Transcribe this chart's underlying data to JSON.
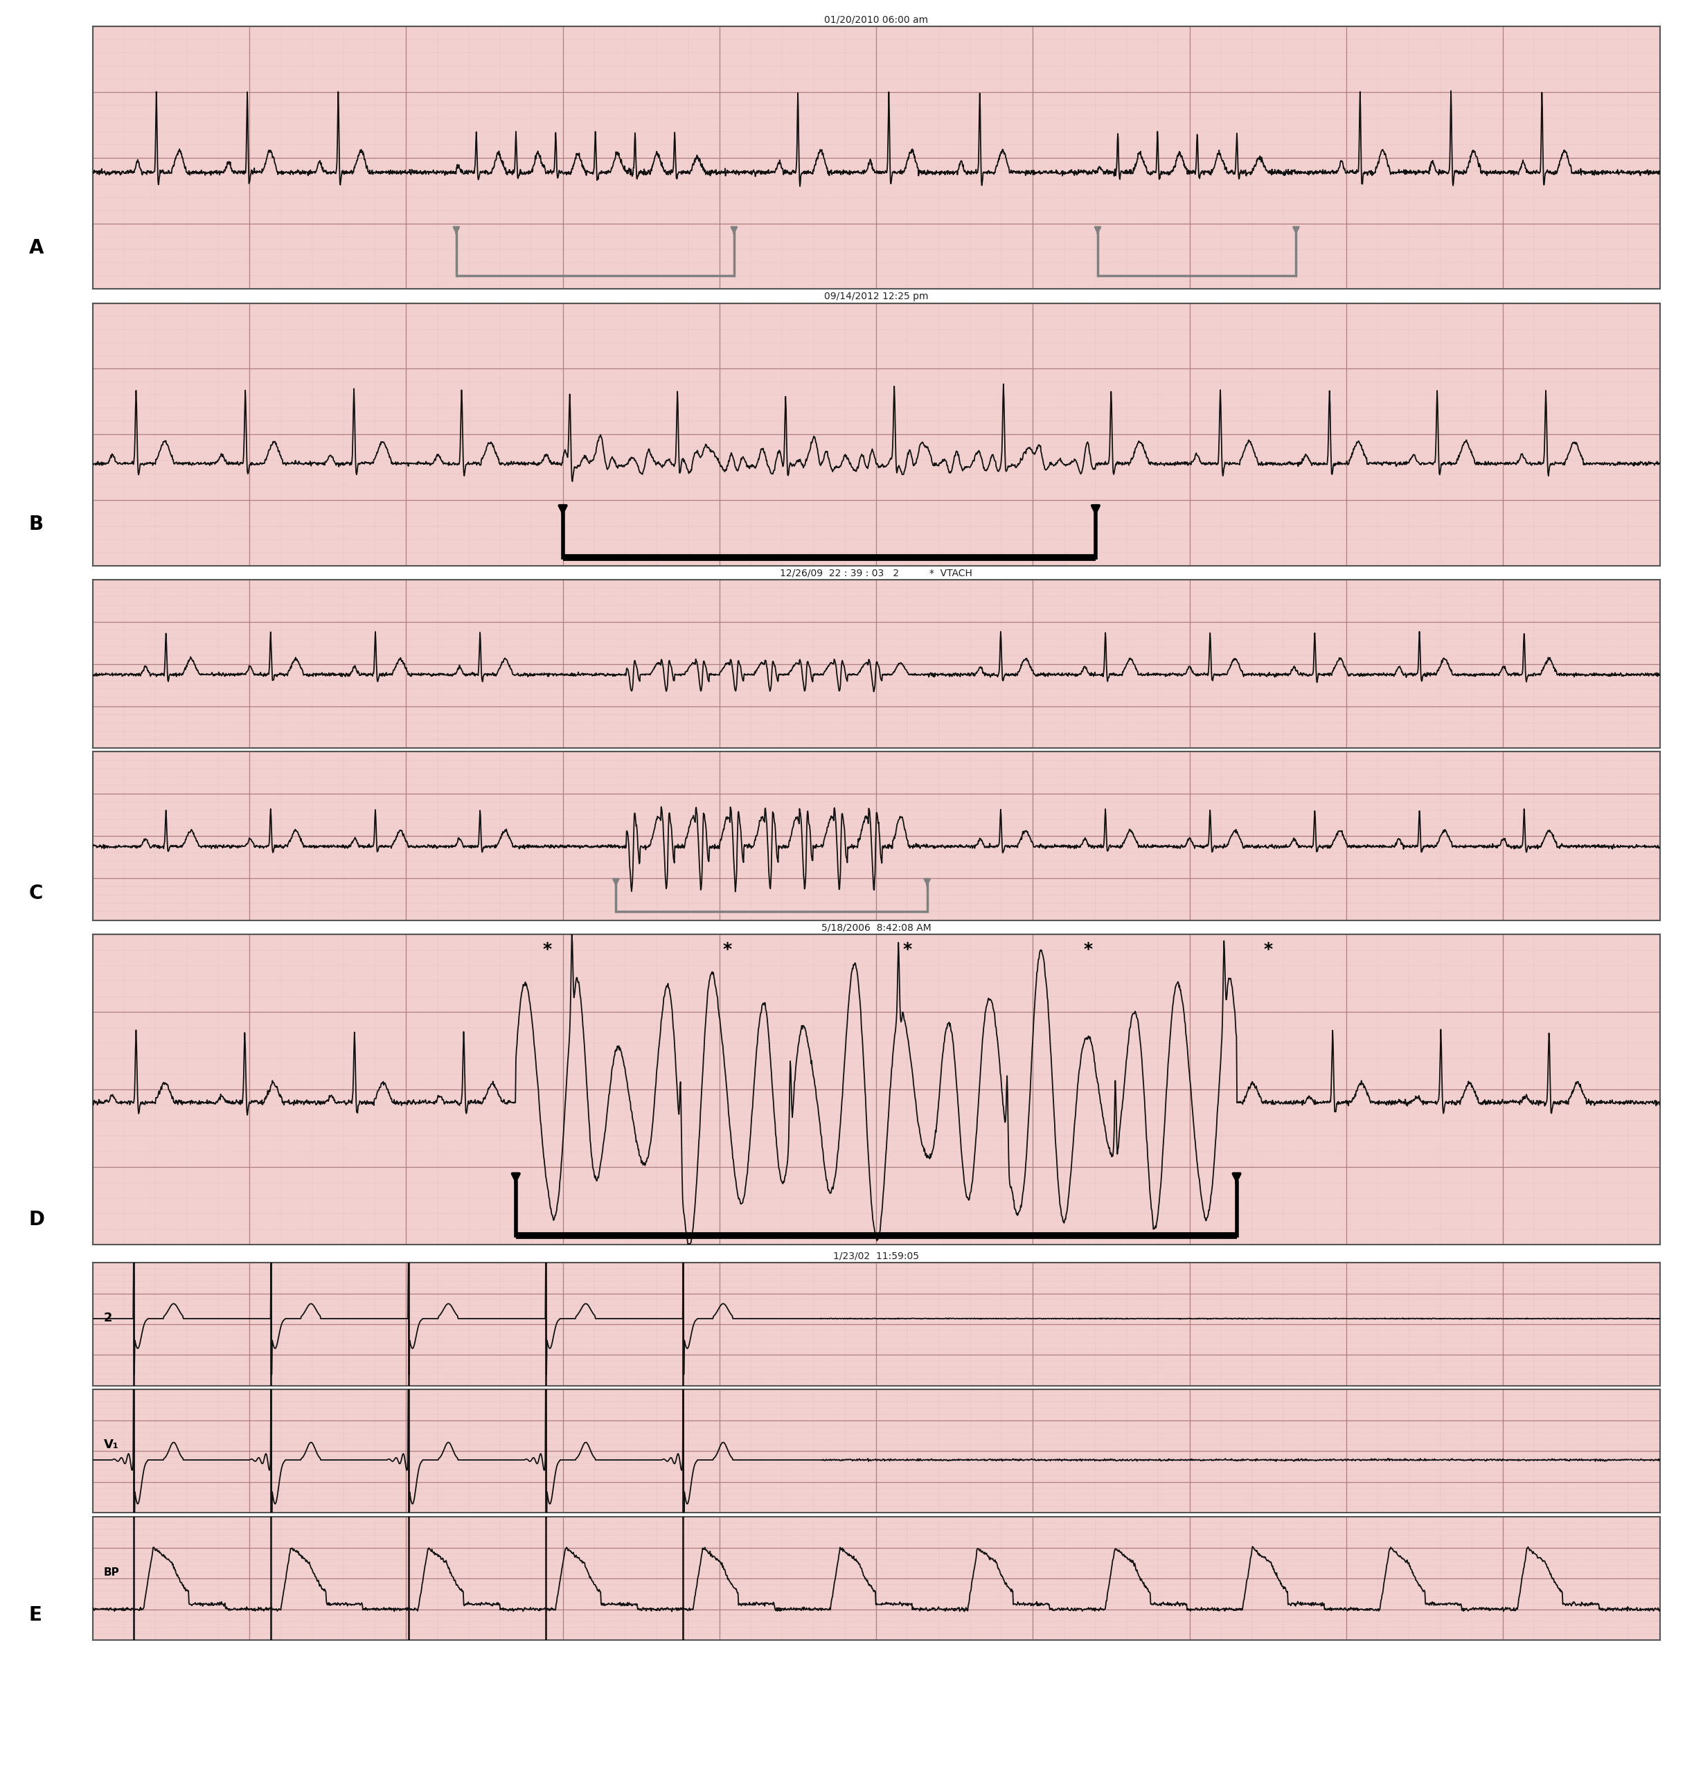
{
  "bg_color": "#f2d0d0",
  "grid_major_color": "#b08080",
  "grid_minor_color": "#d4a8a8",
  "ecg_color": "#111111",
  "figure_bg": "#ffffff",
  "panel_labels": [
    "A",
    "B",
    "C",
    "D",
    "E"
  ],
  "timestamps": [
    "01/20/2010 06:00 am",
    "09/14/2012 12:25 pm",
    "12/26/09  22 : 39 : 03   2          *  VTACH",
    "5/18/2006  8:42:08 AM",
    "1/23/02  11:59:05"
  ],
  "label_E_leads": [
    "2",
    "V₁",
    "BP"
  ],
  "arrow_white": "#aaaaaa",
  "arrow_black": "#111111",
  "border_color": "#555555"
}
